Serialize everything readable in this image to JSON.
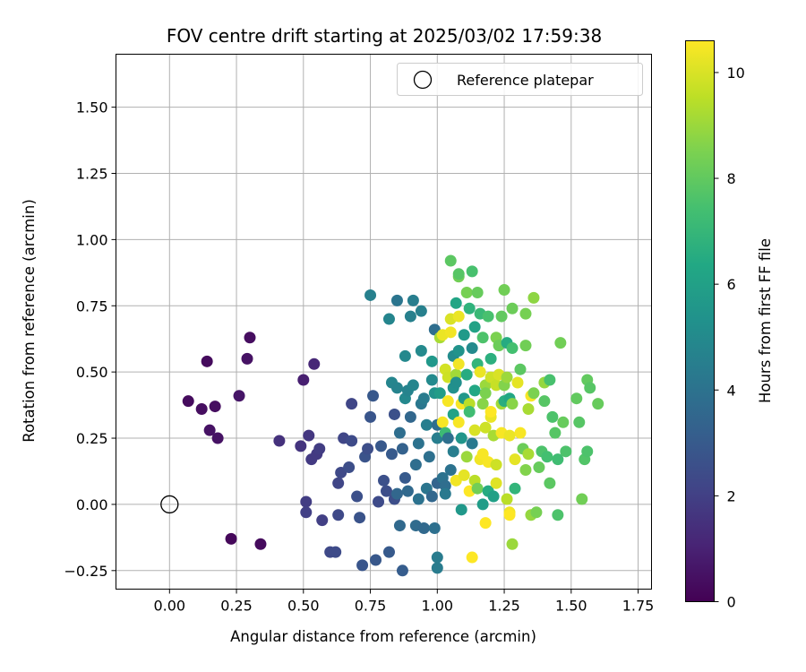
{
  "chart_data": {
    "type": "scatter",
    "title": "FOV centre drift starting at 2025/03/02 17:59:38",
    "xlabel": "Angular distance from reference (arcmin)",
    "ylabel": "Rotation from reference (arcmin)",
    "xlim": [
      -0.2,
      1.8
    ],
    "ylim": [
      -0.32,
      1.7
    ],
    "xticks": [
      "0.00",
      "0.25",
      "0.50",
      "0.75",
      "1.00",
      "1.25",
      "1.50",
      "1.75"
    ],
    "xtick_values": [
      0,
      0.25,
      0.5,
      0.75,
      1.0,
      1.25,
      1.5,
      1.75
    ],
    "yticks": [
      "−0.25",
      "0.00",
      "0.25",
      "0.50",
      "0.75",
      "1.00",
      "1.25",
      "1.50"
    ],
    "ytick_values": [
      -0.25,
      0,
      0.25,
      0.5,
      0.75,
      1.0,
      1.25,
      1.5
    ],
    "grid": true,
    "legend": {
      "position": "top-right",
      "entries": [
        "Reference platepar"
      ]
    },
    "reference_point": {
      "x": 0.0,
      "y": 0.0
    },
    "colorbar": {
      "label": "Hours from first FF file",
      "range": [
        0,
        10.6
      ],
      "ticks": [
        "0",
        "2",
        "4",
        "6",
        "8",
        "10"
      ],
      "tick_values": [
        0,
        2,
        4,
        6,
        8,
        10
      ],
      "colormap": "viridis"
    },
    "points": [
      {
        "x": 0.07,
        "y": 0.39,
        "h": 0.3
      },
      {
        "x": 0.12,
        "y": 0.36,
        "h": 0.4
      },
      {
        "x": 0.14,
        "y": 0.54,
        "h": 0.3
      },
      {
        "x": 0.15,
        "y": 0.28,
        "h": 0.5
      },
      {
        "x": 0.17,
        "y": 0.37,
        "h": 0.4
      },
      {
        "x": 0.18,
        "y": 0.25,
        "h": 0.5
      },
      {
        "x": 0.23,
        "y": -0.13,
        "h": 0.2
      },
      {
        "x": 0.26,
        "y": 0.41,
        "h": 0.6
      },
      {
        "x": 0.29,
        "y": 0.55,
        "h": 0.5
      },
      {
        "x": 0.3,
        "y": 0.63,
        "h": 0.4
      },
      {
        "x": 0.34,
        "y": -0.15,
        "h": 0.3
      },
      {
        "x": 0.41,
        "y": 0.24,
        "h": 1.5
      },
      {
        "x": 0.49,
        "y": 0.22,
        "h": 1.6
      },
      {
        "x": 0.5,
        "y": 0.47,
        "h": 0.9
      },
      {
        "x": 0.51,
        "y": 0.01,
        "h": 1.9
      },
      {
        "x": 0.51,
        "y": -0.03,
        "h": 2.0
      },
      {
        "x": 0.52,
        "y": 0.26,
        "h": 1.7
      },
      {
        "x": 0.53,
        "y": 0.17,
        "h": 1.8
      },
      {
        "x": 0.54,
        "y": 0.53,
        "h": 1.2
      },
      {
        "x": 0.55,
        "y": 0.19,
        "h": 1.8
      },
      {
        "x": 0.56,
        "y": 0.21,
        "h": 1.9
      },
      {
        "x": 0.57,
        "y": -0.06,
        "h": 2.0
      },
      {
        "x": 0.6,
        "y": -0.18,
        "h": 2.3
      },
      {
        "x": 0.62,
        "y": -0.18,
        "h": 2.4
      },
      {
        "x": 0.63,
        "y": 0.08,
        "h": 2.2
      },
      {
        "x": 0.63,
        "y": -0.04,
        "h": 2.3
      },
      {
        "x": 0.64,
        "y": 0.12,
        "h": 2.3
      },
      {
        "x": 0.65,
        "y": 0.25,
        "h": 2.2
      },
      {
        "x": 0.67,
        "y": 0.14,
        "h": 2.5
      },
      {
        "x": 0.68,
        "y": 0.24,
        "h": 2.4
      },
      {
        "x": 0.68,
        "y": 0.38,
        "h": 2.2
      },
      {
        "x": 0.7,
        "y": 0.03,
        "h": 2.6
      },
      {
        "x": 0.71,
        "y": -0.05,
        "h": 2.7
      },
      {
        "x": 0.72,
        "y": -0.23,
        "h": 2.8
      },
      {
        "x": 0.73,
        "y": 0.18,
        "h": 2.7
      },
      {
        "x": 0.74,
        "y": 0.21,
        "h": 2.5
      },
      {
        "x": 0.75,
        "y": 0.33,
        "h": 2.8
      },
      {
        "x": 0.75,
        "y": 0.79,
        "h": 4.6
      },
      {
        "x": 0.76,
        "y": 0.41,
        "h": 2.9
      },
      {
        "x": 0.77,
        "y": -0.21,
        "h": 2.9
      },
      {
        "x": 0.78,
        "y": 0.01,
        "h": 2.4
      },
      {
        "x": 0.79,
        "y": 0.22,
        "h": 2.9
      },
      {
        "x": 0.8,
        "y": 0.09,
        "h": 2.6
      },
      {
        "x": 0.81,
        "y": 0.05,
        "h": 2.5
      },
      {
        "x": 0.82,
        "y": -0.18,
        "h": 3.0
      },
      {
        "x": 0.82,
        "y": 0.7,
        "h": 4.8
      },
      {
        "x": 0.83,
        "y": 0.19,
        "h": 3.0
      },
      {
        "x": 0.83,
        "y": 0.46,
        "h": 4.8
      },
      {
        "x": 0.84,
        "y": 0.34,
        "h": 2.6
      },
      {
        "x": 0.84,
        "y": 0.02,
        "h": 2.5
      },
      {
        "x": 0.85,
        "y": 0.44,
        "h": 4.7
      },
      {
        "x": 0.85,
        "y": 0.77,
        "h": 4.1
      },
      {
        "x": 0.85,
        "y": 0.04,
        "h": 3.5
      },
      {
        "x": 0.86,
        "y": -0.08,
        "h": 3.6
      },
      {
        "x": 0.86,
        "y": 0.27,
        "h": 3.8
      },
      {
        "x": 0.87,
        "y": 0.21,
        "h": 3.3
      },
      {
        "x": 0.87,
        "y": -0.25,
        "h": 3.1
      },
      {
        "x": 0.88,
        "y": 0.1,
        "h": 3.0
      },
      {
        "x": 0.88,
        "y": 0.56,
        "h": 4.9
      },
      {
        "x": 0.88,
        "y": 0.4,
        "h": 4.9
      },
      {
        "x": 0.89,
        "y": 0.43,
        "h": 4.7
      },
      {
        "x": 0.89,
        "y": 0.05,
        "h": 3.6
      },
      {
        "x": 0.9,
        "y": 0.33,
        "h": 3.5
      },
      {
        "x": 0.9,
        "y": 0.71,
        "h": 4.6
      },
      {
        "x": 0.91,
        "y": 0.77,
        "h": 4.5
      },
      {
        "x": 0.91,
        "y": 0.45,
        "h": 4.8
      },
      {
        "x": 0.92,
        "y": 0.15,
        "h": 3.8
      },
      {
        "x": 0.92,
        "y": -0.08,
        "h": 3.7
      },
      {
        "x": 0.93,
        "y": 0.23,
        "h": 4.0
      },
      {
        "x": 0.93,
        "y": 0.02,
        "h": 4.0
      },
      {
        "x": 0.94,
        "y": 0.58,
        "h": 5.0
      },
      {
        "x": 0.94,
        "y": 0.38,
        "h": 4.2
      },
      {
        "x": 0.94,
        "y": 0.73,
        "h": 4.6
      },
      {
        "x": 0.95,
        "y": -0.09,
        "h": 3.6
      },
      {
        "x": 0.95,
        "y": 0.4,
        "h": 4.4
      },
      {
        "x": 0.96,
        "y": 0.3,
        "h": 4.5
      },
      {
        "x": 0.96,
        "y": 0.06,
        "h": 4.1
      },
      {
        "x": 0.97,
        "y": 0.18,
        "h": 3.9
      },
      {
        "x": 0.98,
        "y": 0.47,
        "h": 5.0
      },
      {
        "x": 0.98,
        "y": 0.54,
        "h": 5.6
      },
      {
        "x": 0.98,
        "y": 0.03,
        "h": 3.5
      },
      {
        "x": 0.99,
        "y": 0.66,
        "h": 3.8
      },
      {
        "x": 0.99,
        "y": -0.09,
        "h": 3.9
      },
      {
        "x": 0.99,
        "y": 0.42,
        "h": 5.4
      },
      {
        "x": 1.0,
        "y": 0.3,
        "h": 3.8
      },
      {
        "x": 1.0,
        "y": 0.08,
        "h": 3.4
      },
      {
        "x": 1.0,
        "y": -0.24,
        "h": 4.4
      },
      {
        "x": 1.0,
        "y": 0.25,
        "h": 4.5
      },
      {
        "x": 1.0,
        "y": -0.2,
        "h": 4.4
      },
      {
        "x": 1.01,
        "y": 0.63,
        "h": 9.2
      },
      {
        "x": 1.01,
        "y": 0.42,
        "h": 5.8
      },
      {
        "x": 1.02,
        "y": 0.31,
        "h": 10.5
      },
      {
        "x": 1.02,
        "y": 0.64,
        "h": 10.3
      },
      {
        "x": 1.02,
        "y": 0.1,
        "h": 4.0
      },
      {
        "x": 1.03,
        "y": 0.51,
        "h": 9.9
      },
      {
        "x": 1.03,
        "y": 0.27,
        "h": 7.2
      },
      {
        "x": 1.03,
        "y": 0.07,
        "h": 3.8
      },
      {
        "x": 1.03,
        "y": 0.04,
        "h": 4.3
      },
      {
        "x": 1.04,
        "y": 0.39,
        "h": 10.5
      },
      {
        "x": 1.04,
        "y": 0.25,
        "h": 3.9
      },
      {
        "x": 1.04,
        "y": 0.48,
        "h": 9.8
      },
      {
        "x": 1.05,
        "y": 0.65,
        "h": 10.4
      },
      {
        "x": 1.05,
        "y": 0.7,
        "h": 10.0
      },
      {
        "x": 1.05,
        "y": 0.92,
        "h": 7.9
      },
      {
        "x": 1.05,
        "y": 0.13,
        "h": 4.0
      },
      {
        "x": 1.06,
        "y": 0.56,
        "h": 5.1
      },
      {
        "x": 1.06,
        "y": 0.44,
        "h": 5.3
      },
      {
        "x": 1.06,
        "y": 0.34,
        "h": 6.1
      },
      {
        "x": 1.06,
        "y": 0.2,
        "h": 4.5
      },
      {
        "x": 1.07,
        "y": 0.76,
        "h": 6.2
      },
      {
        "x": 1.07,
        "y": 0.49,
        "h": 9.1
      },
      {
        "x": 1.07,
        "y": 0.09,
        "h": 10.4
      },
      {
        "x": 1.07,
        "y": 0.46,
        "h": 5.2
      },
      {
        "x": 1.08,
        "y": 0.86,
        "h": 8.3
      },
      {
        "x": 1.08,
        "y": 0.31,
        "h": 10.5
      },
      {
        "x": 1.08,
        "y": 0.58,
        "h": 5.4
      },
      {
        "x": 1.08,
        "y": 0.71,
        "h": 10.3
      },
      {
        "x": 1.08,
        "y": 0.87,
        "h": 7.8
      },
      {
        "x": 1.08,
        "y": 0.53,
        "h": 10.4
      },
      {
        "x": 1.09,
        "y": 0.38,
        "h": 10.5
      },
      {
        "x": 1.09,
        "y": 0.25,
        "h": 5.5
      },
      {
        "x": 1.09,
        "y": -0.02,
        "h": 5.6
      },
      {
        "x": 1.1,
        "y": 0.4,
        "h": 5.6
      },
      {
        "x": 1.1,
        "y": 0.64,
        "h": 5.7
      },
      {
        "x": 1.1,
        "y": 0.11,
        "h": 10.2
      },
      {
        "x": 1.11,
        "y": 0.8,
        "h": 8.4
      },
      {
        "x": 1.11,
        "y": 0.49,
        "h": 6.5
      },
      {
        "x": 1.11,
        "y": 0.18,
        "h": 9.0
      },
      {
        "x": 1.12,
        "y": 0.74,
        "h": 6.8
      },
      {
        "x": 1.12,
        "y": 0.38,
        "h": 9.5
      },
      {
        "x": 1.12,
        "y": 0.35,
        "h": 7.3
      },
      {
        "x": 1.12,
        "y": 0.05,
        "h": 10.6
      },
      {
        "x": 1.13,
        "y": 0.88,
        "h": 7.5
      },
      {
        "x": 1.13,
        "y": -0.2,
        "h": 10.6
      },
      {
        "x": 1.13,
        "y": 0.59,
        "h": 5.0
      },
      {
        "x": 1.13,
        "y": 0.23,
        "h": 4.3
      },
      {
        "x": 1.14,
        "y": 0.67,
        "h": 6.1
      },
      {
        "x": 1.14,
        "y": 0.43,
        "h": 6.3
      },
      {
        "x": 1.14,
        "y": 0.28,
        "h": 10.0
      },
      {
        "x": 1.14,
        "y": 0.09,
        "h": 9.5
      },
      {
        "x": 1.15,
        "y": 0.8,
        "h": 8.1
      },
      {
        "x": 1.15,
        "y": 0.53,
        "h": 6.9
      },
      {
        "x": 1.15,
        "y": 0.06,
        "h": 8.3
      },
      {
        "x": 1.16,
        "y": 0.72,
        "h": 7.1
      },
      {
        "x": 1.16,
        "y": 0.17,
        "h": 10.4
      },
      {
        "x": 1.16,
        "y": 0.5,
        "h": 10.3
      },
      {
        "x": 1.17,
        "y": 0.38,
        "h": 8.7
      },
      {
        "x": 1.17,
        "y": 0.63,
        "h": 7.6
      },
      {
        "x": 1.17,
        "y": 0.19,
        "h": 10.5
      },
      {
        "x": 1.17,
        "y": 0.0,
        "h": 5.8
      },
      {
        "x": 1.18,
        "y": -0.07,
        "h": 10.6
      },
      {
        "x": 1.18,
        "y": 0.45,
        "h": 9.0
      },
      {
        "x": 1.18,
        "y": 0.29,
        "h": 9.8
      },
      {
        "x": 1.18,
        "y": 0.42,
        "h": 8.5
      },
      {
        "x": 1.19,
        "y": 0.71,
        "h": 7.5
      },
      {
        "x": 1.19,
        "y": 0.05,
        "h": 6.5
      },
      {
        "x": 1.19,
        "y": 0.16,
        "h": 10.5
      },
      {
        "x": 1.2,
        "y": 0.55,
        "h": 6.7
      },
      {
        "x": 1.2,
        "y": 0.33,
        "h": 10.3
      },
      {
        "x": 1.2,
        "y": 0.48,
        "h": 9.8
      },
      {
        "x": 1.2,
        "y": 0.35,
        "h": 10.6
      },
      {
        "x": 1.21,
        "y": 0.26,
        "h": 9.2
      },
      {
        "x": 1.21,
        "y": 0.03,
        "h": 6.0
      },
      {
        "x": 1.22,
        "y": 0.63,
        "h": 8.5
      },
      {
        "x": 1.22,
        "y": 0.45,
        "h": 9.7
      },
      {
        "x": 1.22,
        "y": 0.15,
        "h": 9.8
      },
      {
        "x": 1.22,
        "y": 0.08,
        "h": 10.1
      },
      {
        "x": 1.23,
        "y": 0.6,
        "h": 8.2
      },
      {
        "x": 1.23,
        "y": 0.49,
        "h": 10.0
      },
      {
        "x": 1.24,
        "y": 0.71,
        "h": 8.0
      },
      {
        "x": 1.24,
        "y": 0.38,
        "h": 9.1
      },
      {
        "x": 1.24,
        "y": 0.27,
        "h": 10.5
      },
      {
        "x": 1.25,
        "y": 0.81,
        "h": 8.3
      },
      {
        "x": 1.25,
        "y": 0.45,
        "h": 8.6
      },
      {
        "x": 1.25,
        "y": 0.39,
        "h": 6.6
      },
      {
        "x": 1.26,
        "y": 0.61,
        "h": 6.5
      },
      {
        "x": 1.26,
        "y": 0.02,
        "h": 9.5
      },
      {
        "x": 1.26,
        "y": 0.48,
        "h": 9.0
      },
      {
        "x": 1.27,
        "y": 0.26,
        "h": 10.3
      },
      {
        "x": 1.27,
        "y": 0.4,
        "h": 6.3
      },
      {
        "x": 1.27,
        "y": -0.03,
        "h": 10.4
      },
      {
        "x": 1.27,
        "y": -0.04,
        "h": 10.6
      },
      {
        "x": 1.28,
        "y": 0.74,
        "h": 8.2
      },
      {
        "x": 1.28,
        "y": 0.59,
        "h": 7.4
      },
      {
        "x": 1.28,
        "y": 0.38,
        "h": 8.7
      },
      {
        "x": 1.28,
        "y": -0.15,
        "h": 9.0
      },
      {
        "x": 1.29,
        "y": 0.17,
        "h": 10.2
      },
      {
        "x": 1.29,
        "y": 0.06,
        "h": 6.9
      },
      {
        "x": 1.3,
        "y": 0.46,
        "h": 10.2
      },
      {
        "x": 1.31,
        "y": 0.51,
        "h": 7.9
      },
      {
        "x": 1.31,
        "y": 0.27,
        "h": 10.5
      },
      {
        "x": 1.32,
        "y": 0.21,
        "h": 8.2
      },
      {
        "x": 1.33,
        "y": 0.72,
        "h": 8.4
      },
      {
        "x": 1.33,
        "y": 0.6,
        "h": 8.3
      },
      {
        "x": 1.33,
        "y": 0.13,
        "h": 8.6
      },
      {
        "x": 1.34,
        "y": 0.19,
        "h": 9.2
      },
      {
        "x": 1.34,
        "y": 0.36,
        "h": 9.2
      },
      {
        "x": 1.35,
        "y": -0.04,
        "h": 8.9
      },
      {
        "x": 1.35,
        "y": 0.41,
        "h": 10.5
      },
      {
        "x": 1.36,
        "y": 0.42,
        "h": 8.5
      },
      {
        "x": 1.36,
        "y": 0.78,
        "h": 8.8
      },
      {
        "x": 1.37,
        "y": -0.03,
        "h": 8.4
      },
      {
        "x": 1.38,
        "y": 0.14,
        "h": 8.1
      },
      {
        "x": 1.39,
        "y": 0.2,
        "h": 7.6
      },
      {
        "x": 1.4,
        "y": 0.39,
        "h": 7.8
      },
      {
        "x": 1.4,
        "y": 0.46,
        "h": 8.9
      },
      {
        "x": 1.41,
        "y": 0.18,
        "h": 7.4
      },
      {
        "x": 1.42,
        "y": 0.08,
        "h": 7.9
      },
      {
        "x": 1.42,
        "y": 0.47,
        "h": 7.5
      },
      {
        "x": 1.43,
        "y": 0.33,
        "h": 7.6
      },
      {
        "x": 1.44,
        "y": 0.27,
        "h": 7.8
      },
      {
        "x": 1.45,
        "y": -0.04,
        "h": 7.6
      },
      {
        "x": 1.45,
        "y": 0.17,
        "h": 7.3
      },
      {
        "x": 1.46,
        "y": 0.61,
        "h": 8.3
      },
      {
        "x": 1.47,
        "y": 0.31,
        "h": 8.1
      },
      {
        "x": 1.48,
        "y": 0.2,
        "h": 7.6
      },
      {
        "x": 1.52,
        "y": 0.4,
        "h": 8.0
      },
      {
        "x": 1.53,
        "y": 0.31,
        "h": 7.8
      },
      {
        "x": 1.54,
        "y": 0.02,
        "h": 8.3
      },
      {
        "x": 1.55,
        "y": 0.17,
        "h": 7.7
      },
      {
        "x": 1.56,
        "y": 0.47,
        "h": 8.0
      },
      {
        "x": 1.56,
        "y": 0.2,
        "h": 7.6
      },
      {
        "x": 1.57,
        "y": 0.44,
        "h": 7.8
      },
      {
        "x": 1.6,
        "y": 0.38,
        "h": 8.1
      }
    ]
  }
}
